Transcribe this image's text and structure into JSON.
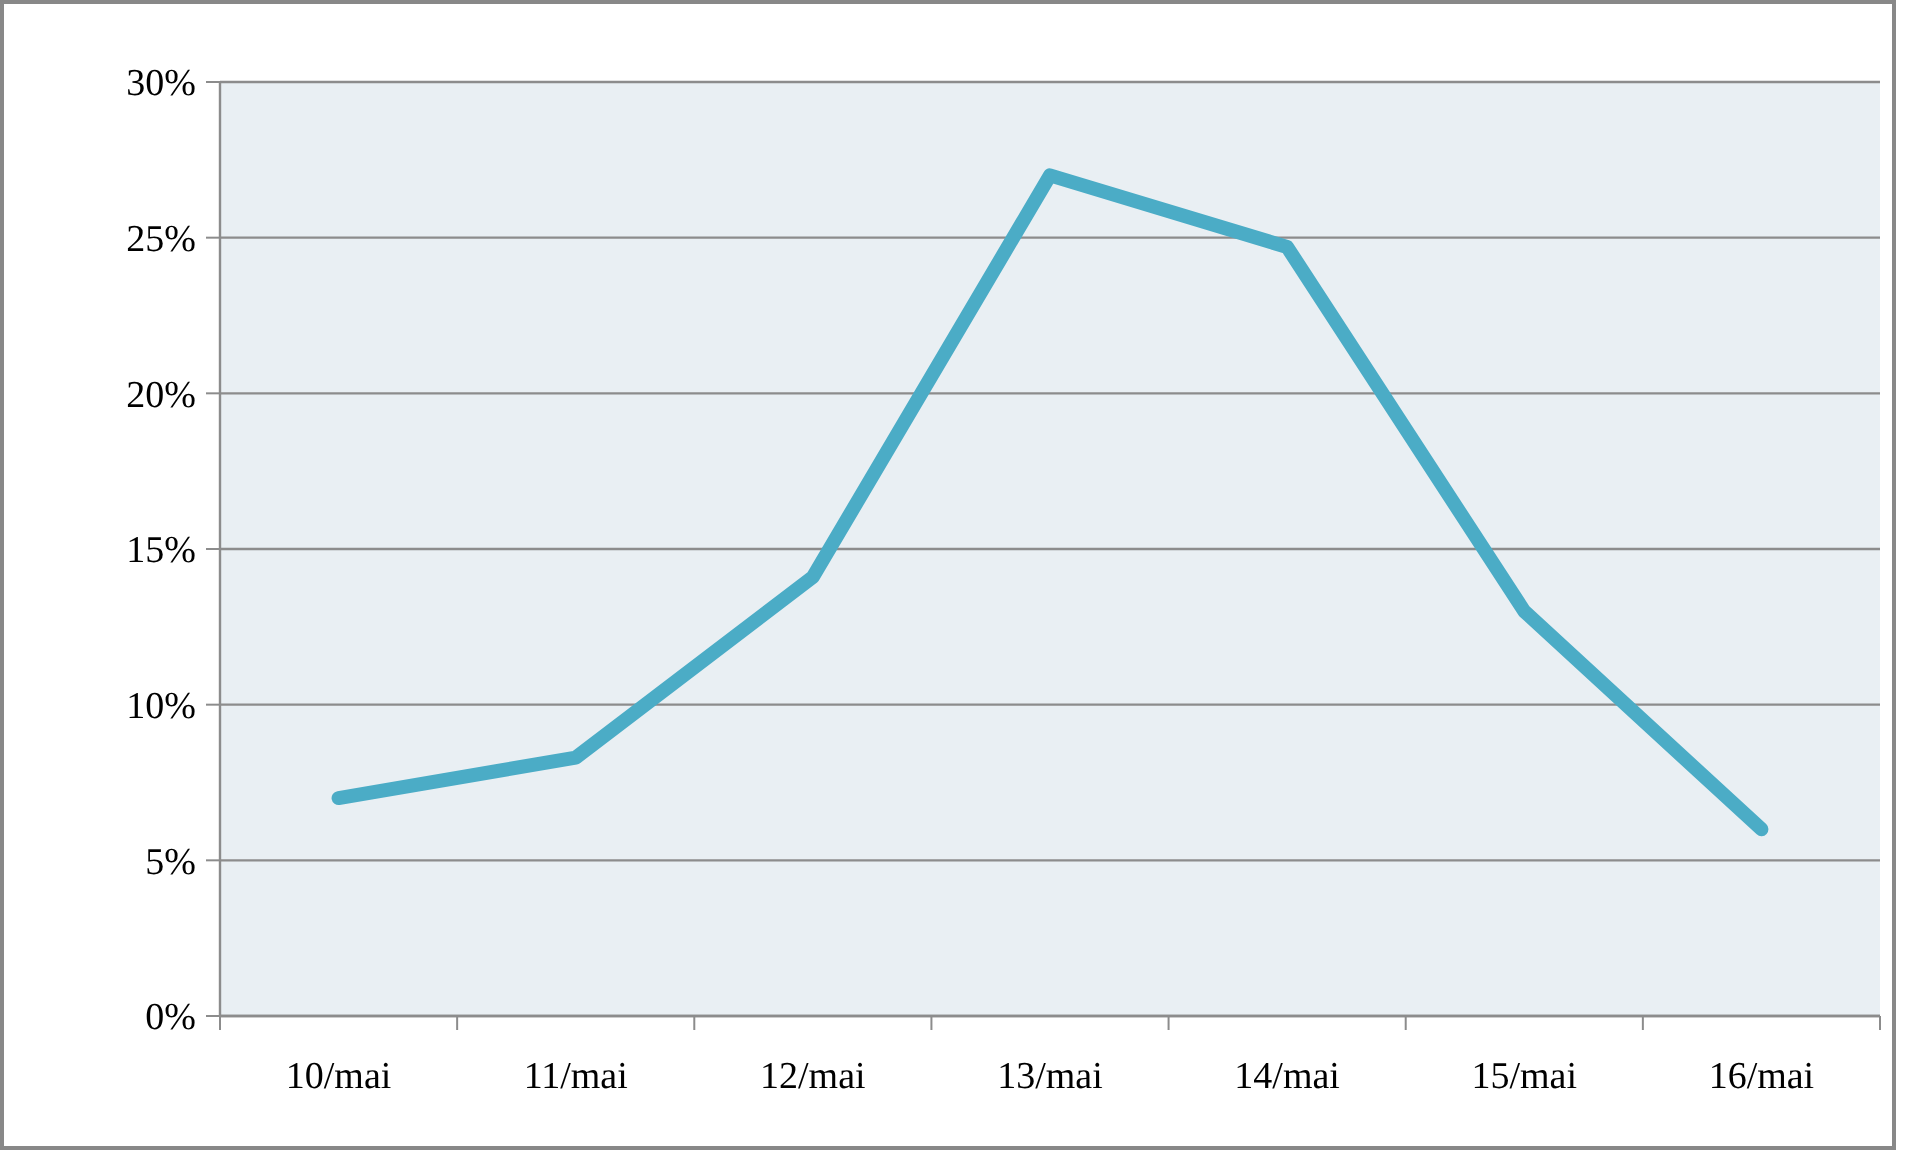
{
  "chart_data": {
    "type": "line",
    "categories": [
      "10/mai",
      "11/mai",
      "12/mai",
      "13/mai",
      "14/mai",
      "15/mai",
      "16/mai"
    ],
    "series": [
      {
        "color": "#4bacc6",
        "values": [
          7,
          8.3,
          14.1,
          27,
          24.7,
          13,
          6
        ]
      }
    ],
    "ylim": [
      0,
      30
    ],
    "yticks": [
      {
        "value": 0,
        "label": "0%"
      },
      {
        "value": 5,
        "label": "5%"
      },
      {
        "value": 10,
        "label": "10%"
      },
      {
        "value": 15,
        "label": "15%"
      },
      {
        "value": 20,
        "label": "20%"
      },
      {
        "value": 25,
        "label": "25%"
      },
      {
        "value": 30,
        "label": "30%"
      }
    ],
    "grid": "y",
    "marker": "none",
    "line_style": "solid"
  }
}
